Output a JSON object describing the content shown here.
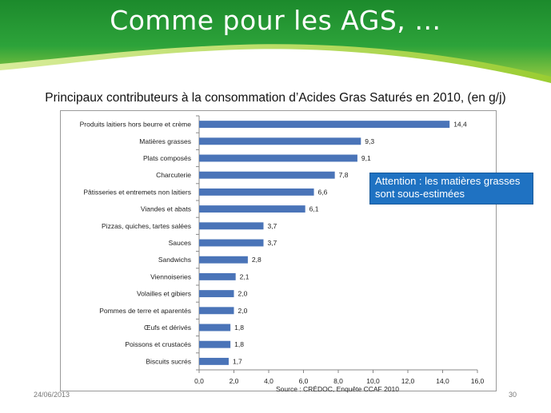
{
  "slide": {
    "title": "Comme pour les AGS, …",
    "subtitle": "Principaux contributeurs à la consommation d’Acides Gras Saturés en 2010, (en g/j)",
    "callout": "Attention : les matières grasses sont sous-estimées",
    "source": "Source : CRÉDOC, Enquête CCAF 2010",
    "date": "24/06/2013",
    "page_number": "30"
  },
  "colors": {
    "banner_dark": "#1e8a2e",
    "banner_light": "#9acd32",
    "bar": "#4a74b8",
    "callout_bg": "#1f72c2"
  },
  "chart_data": {
    "type": "bar",
    "orientation": "horizontal",
    "title": "Principaux contributeurs à la consommation d’Acides Gras Saturés en 2010, (en g/j)",
    "xlabel": "",
    "ylabel": "",
    "xlim": [
      0,
      16
    ],
    "xticks": [
      "0,0",
      "2,0",
      "4,0",
      "6,0",
      "8,0",
      "10,0",
      "12,0",
      "14,0",
      "16,0"
    ],
    "xtick_values": [
      0,
      2,
      4,
      6,
      8,
      10,
      12,
      14,
      16
    ],
    "categories": [
      "Produits laitiers hors beurre et crème",
      "Matières grasses",
      "Plats composés",
      "Charcuterie",
      "Pâtisseries et entremets non laitiers",
      "Viandes et abats",
      "Pizzas, quiches, tartes salées",
      "Sauces",
      "Sandwichs",
      "Viennoiseries",
      "Volailles et gibiers",
      "Pommes de terre et aparentés",
      "Œufs et dérivés",
      "Poissons et crustacés",
      "Biscuits sucrés"
    ],
    "values": [
      14.4,
      9.3,
      9.1,
      7.8,
      6.6,
      6.1,
      3.7,
      3.7,
      2.8,
      2.1,
      2.0,
      2.0,
      1.8,
      1.8,
      1.7
    ],
    "value_labels": [
      "14,4",
      "9,3",
      "9,1",
      "7,8",
      "6,6",
      "6,1",
      "3,7",
      "3,7",
      "2,8",
      "2,1",
      "2,0",
      "2,0",
      "1,8",
      "1,8",
      "1,7"
    ],
    "grid": false,
    "legend": "none"
  }
}
